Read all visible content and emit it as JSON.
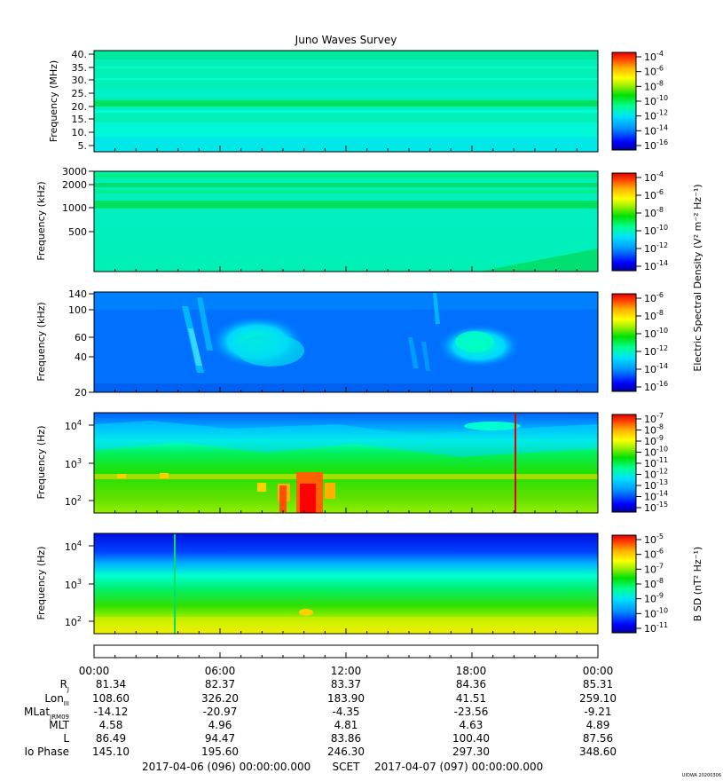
{
  "title": "Juno Waves Survey",
  "footer_stamp": "UIOWA 20200306",
  "colorscale": [
    "#0000c8",
    "#0040ff",
    "#0080ff",
    "#00c8ff",
    "#00ffd0",
    "#00ff60",
    "#40e000",
    "#a0f000",
    "#ffff00",
    "#ffc000",
    "#ff6000",
    "#ff0000"
  ],
  "panels": [
    {
      "ylabel": "Frequency (MHz)",
      "yticks": [
        "40.",
        "35.",
        "30.",
        "25.",
        "20.",
        "15.",
        "10.",
        "5."
      ],
      "colorbar_ticks": [
        {
          "b": "10",
          "e": "-4"
        },
        {
          "b": "10",
          "e": "-6"
        },
        {
          "b": "10",
          "e": "-8"
        },
        {
          "b": "10",
          "e": "-10"
        },
        {
          "b": "10",
          "e": "-12"
        },
        {
          "b": "10",
          "e": "-14"
        },
        {
          "b": "10",
          "e": "-16"
        }
      ]
    },
    {
      "ylabel": "Frequency (kHz)",
      "yticks": [
        "3000",
        "2000",
        "1000",
        "500"
      ],
      "colorbar_ticks": [
        {
          "b": "10",
          "e": "-4"
        },
        {
          "b": "10",
          "e": "-6"
        },
        {
          "b": "10",
          "e": "-8"
        },
        {
          "b": "10",
          "e": "-10"
        },
        {
          "b": "10",
          "e": "-12"
        },
        {
          "b": "10",
          "e": "-14"
        }
      ]
    },
    {
      "ylabel": "Frequency (kHz)",
      "yticks": [
        "140",
        "100",
        "60",
        "40",
        "20"
      ],
      "colorbar_ticks": [
        {
          "b": "10",
          "e": "-6"
        },
        {
          "b": "10",
          "e": "-8"
        },
        {
          "b": "10",
          "e": "-10"
        },
        {
          "b": "10",
          "e": "-12"
        },
        {
          "b": "10",
          "e": "-14"
        },
        {
          "b": "10",
          "e": "-16"
        }
      ]
    },
    {
      "ylabel": "Frequency (Hz)",
      "yticks": [
        {
          "b": "10",
          "e": "4"
        },
        {
          "b": "10",
          "e": "3"
        },
        {
          "b": "10",
          "e": "2"
        }
      ],
      "colorbar_ticks": [
        {
          "b": "10",
          "e": "-7"
        },
        {
          "b": "10",
          "e": "-8"
        },
        {
          "b": "10",
          "e": "-9"
        },
        {
          "b": "10",
          "e": "-10"
        },
        {
          "b": "10",
          "e": "-11"
        },
        {
          "b": "10",
          "e": "-12"
        },
        {
          "b": "10",
          "e": "-13"
        },
        {
          "b": "10",
          "e": "-14"
        },
        {
          "b": "10",
          "e": "-15"
        }
      ]
    },
    {
      "ylabel": "Frequency (Hz)",
      "yticks": [
        {
          "b": "10",
          "e": "4"
        },
        {
          "b": "10",
          "e": "3"
        },
        {
          "b": "10",
          "e": "2"
        }
      ],
      "colorbar_ticks": [
        {
          "b": "10",
          "e": "-5"
        },
        {
          "b": "10",
          "e": "-6"
        },
        {
          "b": "10",
          "e": "-7"
        },
        {
          "b": "10",
          "e": "-8"
        },
        {
          "b": "10",
          "e": "-9"
        },
        {
          "b": "10",
          "e": "-10"
        },
        {
          "b": "10",
          "e": "-11"
        }
      ]
    }
  ],
  "electric_colorbar_label": "Electric Spectral Density (V² m⁻² Hz⁻¹)",
  "magnetic_colorbar_label": "B SD (nT² Hz⁻¹)",
  "ephemeris": {
    "times": [
      "00:00",
      "06:00",
      "12:00",
      "18:00",
      "00:00"
    ],
    "rows": [
      {
        "label": "R",
        "sub": "J",
        "values": [
          "81.34",
          "82.37",
          "83.37",
          "84.36",
          "85.31"
        ]
      },
      {
        "label": "Lon",
        "sub": "III",
        "values": [
          "108.60",
          "326.20",
          "183.90",
          "41.51",
          "259.10"
        ]
      },
      {
        "label": "MLat",
        "sub": "JRM09",
        "values": [
          "-14.12",
          "-20.97",
          "-4.35",
          "-23.56",
          "-9.21"
        ]
      },
      {
        "label": "MLT",
        "sub": "",
        "values": [
          "4.58",
          "4.96",
          "4.81",
          "4.63",
          "4.89"
        ]
      },
      {
        "label": "L",
        "sub": "",
        "values": [
          "86.49",
          "94.47",
          "83.86",
          "100.40",
          "87.56"
        ]
      },
      {
        "label": "Io Phase",
        "sub": "",
        "values": [
          "145.10",
          "195.60",
          "246.30",
          "297.30",
          "348.60"
        ]
      }
    ],
    "start_time": "2017-04-06 (096) 00:00:00.000",
    "axis_label": "SCET",
    "end_time": "2017-04-07 (097) 00:00:00.000"
  },
  "chart_data": {
    "type": "heatmap",
    "title": "Juno Waves Survey",
    "x_range": [
      "2017-04-06 (096) 00:00:00.000",
      "2017-04-07 (097) 00:00:00.000"
    ],
    "x_tick_labels": [
      "00:00",
      "06:00",
      "12:00",
      "18:00",
      "00:00"
    ],
    "panels": [
      {
        "ylabel": "Frequency (MHz)",
        "ylim": [
          3,
          41
        ],
        "scale": "linear",
        "zlim_exp": [
          -17,
          -4
        ],
        "colorbar_label": "Electric Spectral Density (V² m⁻² Hz⁻¹)"
      },
      {
        "ylabel": "Frequency (kHz)",
        "ylim": [
          150,
          3000
        ],
        "scale": "log",
        "zlim_exp": [
          -15,
          -4
        ],
        "colorbar_label": "Electric Spectral Density (V² m⁻² Hz⁻¹)"
      },
      {
        "ylabel": "Frequency (kHz)",
        "ylim": [
          20,
          140
        ],
        "scale": "log",
        "zlim_exp": [
          -16,
          -6
        ],
        "colorbar_label": "Electric Spectral Density (V² m⁻² Hz⁻¹)"
      },
      {
        "ylabel": "Frequency (Hz)",
        "ylim": [
          50,
          20000
        ],
        "scale": "log",
        "zlim_exp": [
          -15,
          -7
        ],
        "colorbar_label": "Electric Spectral Density (V² m⁻² Hz⁻¹)"
      },
      {
        "ylabel": "Frequency (Hz)",
        "ylim": [
          50,
          20000
        ],
        "scale": "log",
        "zlim_exp": [
          -11,
          -4.5
        ],
        "colorbar_label": "B SD (nT² Hz⁻¹)"
      }
    ]
  }
}
